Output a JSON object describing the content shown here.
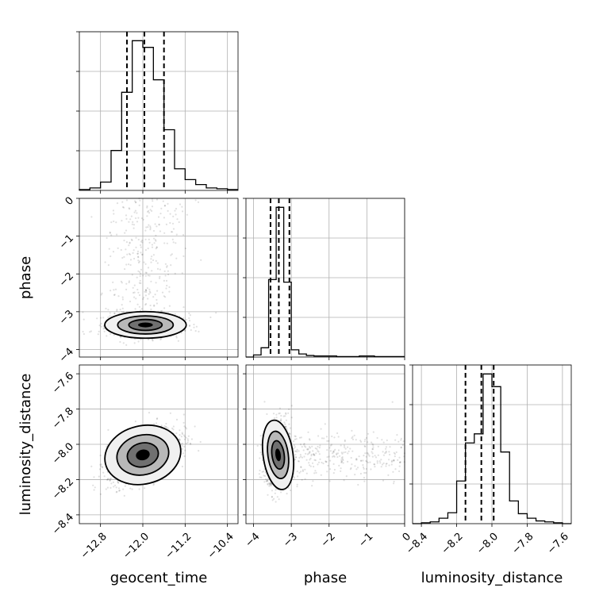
{
  "chart_data": {
    "type": "corner",
    "parameters": [
      "geocent_time",
      "phase",
      "luminosity_distance"
    ],
    "ranges": {
      "geocent_time": [
        -13.2,
        -10.2
      ],
      "phase": [
        -4.2,
        0.0
      ],
      "luminosity_distance": [
        -8.45,
        -7.55
      ]
    },
    "ticks": {
      "geocent_time": [
        -12.8,
        -12.0,
        -11.2,
        -10.4
      ],
      "phase": [
        -4,
        -3,
        -2,
        -1,
        0
      ],
      "luminosity_distance": [
        -8.4,
        -8.2,
        -8.0,
        -7.8,
        -7.6
      ]
    },
    "tick_labels": {
      "geocent_time": [
        "−12.8",
        "−12.0",
        "−11.2",
        "−10.4"
      ],
      "phase": [
        "−4",
        "−3",
        "−2",
        "−1",
        "0"
      ],
      "luminosity_distance": [
        "−8.4",
        "−8.2",
        "−8.0",
        "−7.8",
        "−7.6"
      ]
    },
    "quantiles": {
      "geocent_time": [
        -12.3,
        -11.97,
        -11.6
      ],
      "phase": [
        -3.55,
        -3.33,
        -3.05
      ],
      "luminosity_distance": [
        -8.15,
        -8.06,
        -7.99
      ]
    },
    "histograms": {
      "geocent_time": {
        "edges": [
          -13.2,
          -13.0,
          -12.8,
          -12.6,
          -12.4,
          -12.2,
          -12.0,
          -11.8,
          -11.6,
          -11.4,
          -11.2,
          -11.0,
          -10.8,
          -10.6,
          -10.4,
          -10.2
        ],
        "counts": [
          1,
          3,
          10,
          48,
          118,
          180,
          172,
          133,
          73,
          26,
          13,
          7,
          3,
          2,
          1
        ]
      },
      "phase": {
        "edges": [
          -4.2,
          -4.0,
          -3.8,
          -3.6,
          -3.4,
          -3.2,
          -3.0,
          -2.8,
          -2.6,
          -2.4,
          -2.2,
          -2.0,
          -1.8,
          -1.6,
          -1.4,
          -1.2,
          -1.0,
          -0.8,
          -0.6,
          -0.4,
          -0.2,
          0.0
        ],
        "counts": [
          0,
          4,
          18,
          150,
          290,
          145,
          14,
          6,
          3,
          2,
          2,
          2,
          1,
          1,
          1,
          2,
          2,
          1,
          1,
          1,
          1
        ]
      },
      "luminosity_distance": {
        "edges": [
          -8.45,
          -8.4,
          -8.35,
          -8.3,
          -8.25,
          -8.2,
          -8.15,
          -8.1,
          -8.05,
          -8.0,
          -7.95,
          -7.9,
          -7.85,
          -7.8,
          -7.75,
          -7.7,
          -7.65,
          -7.6,
          -7.55
        ],
        "counts": [
          0,
          1,
          2,
          6,
          12,
          47,
          89,
          99,
          165,
          151,
          79,
          25,
          11,
          6,
          3,
          2,
          1,
          0
        ]
      }
    },
    "pairs": [
      {
        "x": "geocent_time",
        "y": "phase",
        "center": [
          -11.95,
          -3.35
        ],
        "spread": [
          0.35,
          0.16
        ],
        "corr": 0.0
      },
      {
        "x": "geocent_time",
        "y": "luminosity_distance",
        "center": [
          -12.0,
          -8.06
        ],
        "spread": [
          0.33,
          0.075
        ],
        "corr": 0.55
      },
      {
        "x": "phase",
        "y": "luminosity_distance",
        "center": [
          -3.35,
          -8.06
        ],
        "spread": [
          0.18,
          0.09
        ],
        "corr": 0.1
      }
    ]
  }
}
